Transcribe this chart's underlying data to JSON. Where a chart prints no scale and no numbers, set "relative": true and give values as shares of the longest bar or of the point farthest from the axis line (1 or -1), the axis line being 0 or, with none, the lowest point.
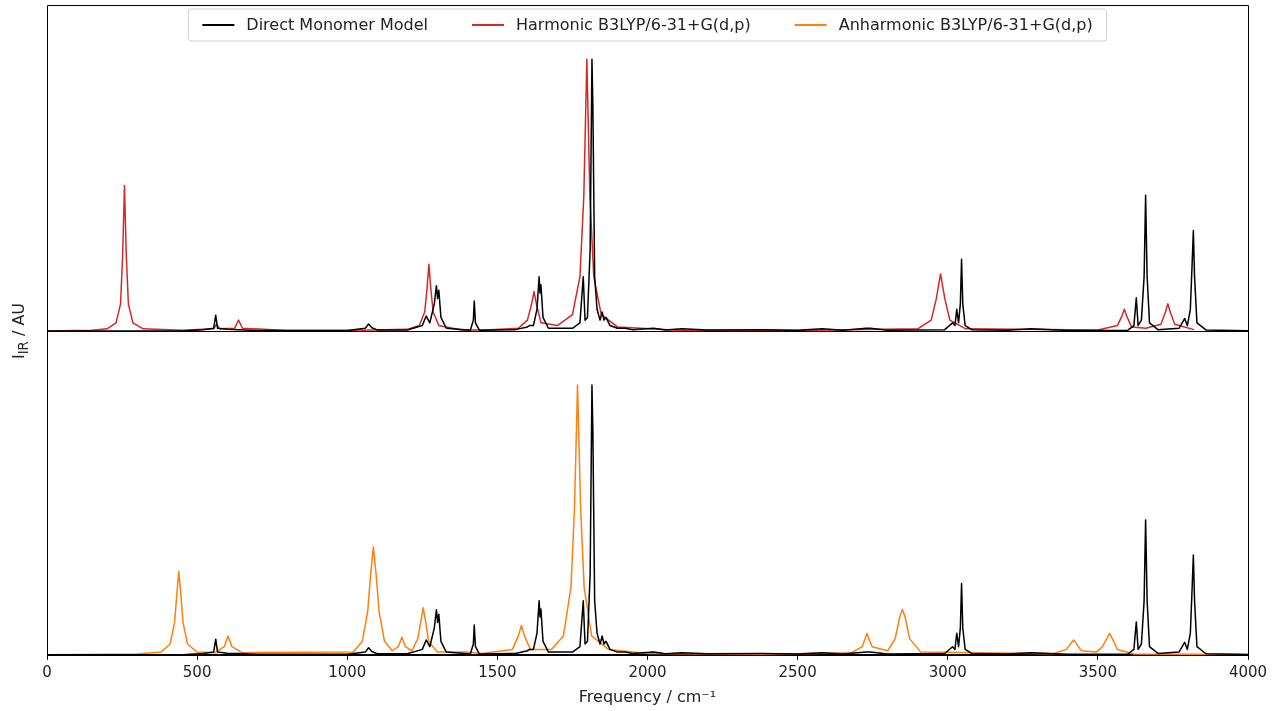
{
  "chart_data": [
    {
      "type": "line",
      "relative": true,
      "ylabel": "I$_{IR}$ / AU",
      "xlim": [
        0,
        4000
      ],
      "xticks": [
        0,
        500,
        1000,
        1500,
        2000,
        2500,
        3000,
        3500,
        4000
      ],
      "tick_labels": false,
      "legend": "top",
      "marker": "none",
      "series": [
        {
          "name": "Direct Monomer Model",
          "color": "#000000",
          "x": [
            0,
            450,
            520,
            555,
            562,
            568,
            600,
            640,
            700,
            1000,
            1060,
            1071,
            1082,
            1100,
            1200,
            1250,
            1263,
            1275,
            1290,
            1297,
            1301,
            1305,
            1312,
            1330,
            1410,
            1420,
            1423,
            1427,
            1440,
            1560,
            1600,
            1607,
            1620,
            1632,
            1639,
            1642,
            1645,
            1652,
            1670,
            1750,
            1775,
            1786,
            1792,
            1800,
            1809,
            1815,
            1818,
            1824,
            1832,
            1842,
            1849,
            1855,
            1862,
            1875,
            1900,
            1926,
            1950,
            2020,
            2060,
            2114,
            2200,
            2381,
            2500,
            2582,
            2650,
            2729,
            2742,
            2800,
            2990,
            3016,
            3024,
            3030,
            3036,
            3042,
            3046,
            3050,
            3058,
            3080,
            3200,
            3277,
            3400,
            3600,
            3620,
            3628,
            3634,
            3645,
            3654,
            3659,
            3664,
            3672,
            3700,
            3770,
            3789,
            3798,
            3808,
            3814,
            3818,
            3822,
            3830,
            3860,
            4000
          ],
          "values": [
            0,
            0,
            0.005,
            0.01,
            0.058,
            0.01,
            0.006,
            0.005,
            0.002,
            0.002,
            0.01,
            0.026,
            0.012,
            0.004,
            0.004,
            0.02,
            0.055,
            0.03,
            0.1,
            0.167,
            0.12,
            0.15,
            0.05,
            0.01,
            0.003,
            0.04,
            0.11,
            0.03,
            0.003,
            0.005,
            0.015,
            0.02,
            0.02,
            0.08,
            0.2,
            0.14,
            0.17,
            0.05,
            0.01,
            0.01,
            0.03,
            0.2,
            0.04,
            0.05,
            0.3,
            1.0,
            0.83,
            0.2,
            0.08,
            0.04,
            0.07,
            0.04,
            0.05,
            0.02,
            0.01,
            0.01,
            0.005,
            0.01,
            0.004,
            0.008,
            0.004,
            0.005,
            0.003,
            0.008,
            0.003,
            0.01,
            0.01,
            0.003,
            0.005,
            0.03,
            0.02,
            0.08,
            0.03,
            0.1,
            0.264,
            0.1,
            0.02,
            0.005,
            0.003,
            0.008,
            0.002,
            0.003,
            0.02,
            0.122,
            0.02,
            0.04,
            0.2,
            0.5,
            0.2,
            0.03,
            0.005,
            0.01,
            0.046,
            0.02,
            0.08,
            0.25,
            0.37,
            0.2,
            0.03,
            0.004,
            0.001
          ]
        },
        {
          "name": "Harmonic B3LYP/6-31+G(d,p)",
          "color": "#d62728",
          "x": [
            0,
            150,
            200,
            230,
            245,
            252,
            258,
            264,
            271,
            286,
            320,
            450,
            555,
            565,
            575,
            625,
            638,
            651,
            800,
            1030,
            1040,
            1050,
            1200,
            1240,
            1258,
            1266,
            1272,
            1278,
            1286,
            1305,
            1380,
            1460,
            1570,
            1600,
            1614,
            1622,
            1630,
            1645,
            1700,
            1750,
            1775,
            1788,
            1798,
            1808,
            1821,
            1846,
            1900,
            2100,
            2500,
            2900,
            2945,
            2962,
            2976,
            2990,
            3007,
            3060,
            3500,
            3565,
            3580,
            3588,
            3596,
            3612,
            3660,
            3710,
            3725,
            3733,
            3741,
            3756,
            3820
          ],
          "values": [
            0,
            0.003,
            0.008,
            0.03,
            0.1,
            0.28,
            0.536,
            0.28,
            0.1,
            0.03,
            0.008,
            0.003,
            0.008,
            0.025,
            0.008,
            0.01,
            0.04,
            0.01,
            0.002,
            0.003,
            0.005,
            0.003,
            0.006,
            0.02,
            0.07,
            0.16,
            0.246,
            0.16,
            0.07,
            0.02,
            0.004,
            0.004,
            0.01,
            0.04,
            0.1,
            0.145,
            0.1,
            0.03,
            0.02,
            0.06,
            0.2,
            0.5,
            1.0,
            0.5,
            0.2,
            0.06,
            0.015,
            0.003,
            0.002,
            0.008,
            0.04,
            0.12,
            0.21,
            0.12,
            0.04,
            0.008,
            0.004,
            0.02,
            0.055,
            0.08,
            0.055,
            0.015,
            0.01,
            0.025,
            0.07,
            0.1,
            0.07,
            0.025,
            0.005
          ]
        }
      ]
    },
    {
      "type": "line",
      "relative": true,
      "xlabel": "Frequency / cm⁻¹",
      "xlim": [
        0,
        4000
      ],
      "xticks": [
        0,
        500,
        1000,
        1500,
        2000,
        2500,
        3000,
        3500,
        4000
      ],
      "tick_labels": "x",
      "marker": "none",
      "series": [
        {
          "color": "#000000",
          "x": [
            0,
            450,
            520,
            555,
            562,
            568,
            600,
            640,
            700,
            1000,
            1060,
            1071,
            1082,
            1100,
            1200,
            1250,
            1263,
            1275,
            1290,
            1297,
            1301,
            1305,
            1312,
            1330,
            1410,
            1420,
            1423,
            1427,
            1440,
            1560,
            1600,
            1607,
            1620,
            1632,
            1639,
            1642,
            1645,
            1652,
            1670,
            1750,
            1775,
            1786,
            1792,
            1800,
            1809,
            1815,
            1818,
            1824,
            1832,
            1842,
            1849,
            1855,
            1862,
            1875,
            1900,
            1926,
            1950,
            2020,
            2060,
            2114,
            2200,
            2381,
            2500,
            2582,
            2650,
            2729,
            2742,
            2800,
            2990,
            3016,
            3024,
            3030,
            3036,
            3042,
            3046,
            3050,
            3058,
            3080,
            3200,
            3277,
            3400,
            3600,
            3620,
            3628,
            3634,
            3645,
            3654,
            3659,
            3664,
            3672,
            3700,
            3770,
            3789,
            3798,
            3808,
            3814,
            3818,
            3822,
            3830,
            3860,
            4000
          ],
          "values": [
            0,
            0,
            0.005,
            0.01,
            0.058,
            0.01,
            0.006,
            0.005,
            0.002,
            0.002,
            0.01,
            0.026,
            0.012,
            0.004,
            0.004,
            0.02,
            0.055,
            0.03,
            0.1,
            0.167,
            0.12,
            0.15,
            0.05,
            0.01,
            0.003,
            0.04,
            0.11,
            0.03,
            0.003,
            0.005,
            0.015,
            0.02,
            0.02,
            0.08,
            0.2,
            0.14,
            0.17,
            0.05,
            0.01,
            0.01,
            0.03,
            0.2,
            0.04,
            0.05,
            0.3,
            1.0,
            0.83,
            0.2,
            0.08,
            0.04,
            0.07,
            0.04,
            0.05,
            0.02,
            0.01,
            0.01,
            0.005,
            0.01,
            0.004,
            0.008,
            0.004,
            0.005,
            0.003,
            0.008,
            0.003,
            0.01,
            0.01,
            0.003,
            0.005,
            0.03,
            0.02,
            0.08,
            0.03,
            0.1,
            0.264,
            0.1,
            0.02,
            0.005,
            0.003,
            0.008,
            0.002,
            0.003,
            0.02,
            0.122,
            0.02,
            0.04,
            0.2,
            0.5,
            0.2,
            0.03,
            0.005,
            0.01,
            0.046,
            0.02,
            0.08,
            0.25,
            0.37,
            0.2,
            0.03,
            0.004,
            0.001
          ]
        },
        {
          "name": "Anharmonic B3LYP/6-31+G(d,p)",
          "color": "#ff7f0e",
          "x": [
            0,
            300,
            380,
            410,
            425,
            432,
            439,
            446,
            453,
            468,
            500,
            560,
            590,
            603,
            616,
            650,
            1020,
            1050,
            1068,
            1078,
            1087,
            1096,
            1106,
            1124,
            1150,
            1170,
            1182,
            1194,
            1215,
            1235,
            1246,
            1253,
            1260,
            1271,
            1300,
            1390,
            1450,
            1550,
            1570,
            1580,
            1590,
            1610,
            1680,
            1720,
            1745,
            1757,
            1767,
            1777,
            1789,
            1814,
            1870,
            2000,
            2400,
            2680,
            2715,
            2725,
            2731,
            2737,
            2748,
            2800,
            2825,
            2840,
            2849,
            2858,
            2873,
            2910,
            3350,
            3395,
            3412,
            3419,
            3426,
            3445,
            3495,
            3515,
            3532,
            3539,
            3546,
            3565,
            3620,
            4000
          ],
          "values": [
            0,
            0.003,
            0.01,
            0.04,
            0.12,
            0.22,
            0.309,
            0.22,
            0.12,
            0.04,
            0.01,
            0.008,
            0.03,
            0.07,
            0.03,
            0.008,
            0.01,
            0.05,
            0.16,
            0.3,
            0.4,
            0.3,
            0.16,
            0.05,
            0.015,
            0.03,
            0.065,
            0.03,
            0.015,
            0.06,
            0.13,
            0.174,
            0.13,
            0.05,
            0.01,
            0.01,
            0.005,
            0.02,
            0.07,
            0.109,
            0.07,
            0.02,
            0.02,
            0.07,
            0.25,
            0.55,
            1.0,
            0.55,
            0.25,
            0.07,
            0.02,
            0.005,
            0.002,
            0.008,
            0.03,
            0.06,
            0.079,
            0.06,
            0.03,
            0.015,
            0.06,
            0.14,
            0.168,
            0.14,
            0.06,
            0.01,
            0.004,
            0.02,
            0.045,
            0.055,
            0.045,
            0.015,
            0.01,
            0.03,
            0.065,
            0.079,
            0.065,
            0.02,
            0.003,
            0.001
          ]
        }
      ]
    }
  ]
}
